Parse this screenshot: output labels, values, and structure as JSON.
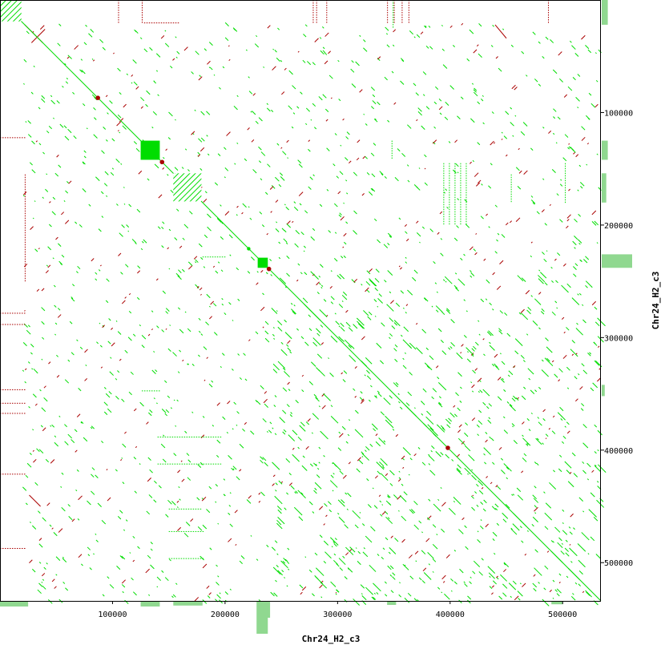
{
  "chart_data": {
    "type": "scatter",
    "title": "",
    "xlabel": "Chr24_H2_c3",
    "ylabel": "Chr24_H2_c3",
    "xlim": [
      0,
      534000
    ],
    "ylim": [
      0,
      534000
    ],
    "y_inverted": true,
    "grid": false,
    "x_ticks": [
      100000,
      200000,
      300000,
      400000,
      500000
    ],
    "y_ticks": [
      100000,
      200000,
      300000,
      400000,
      500000
    ],
    "colors": {
      "forward": "#00dd00",
      "reverse": "#aa0000",
      "histogram": "#90d890",
      "background": "#ffffff"
    },
    "diagonal": {
      "from": [
        0,
        0
      ],
      "to": [
        534000,
        534000
      ]
    },
    "blocks": [
      {
        "x": [
          0,
          19000
        ],
        "y": [
          0,
          19000
        ],
        "style": "hatched"
      },
      {
        "x": [
          125000,
          142000
        ],
        "y": [
          125000,
          142000
        ],
        "style": "solid"
      },
      {
        "x": [
          154000,
          179000
        ],
        "y": [
          154000,
          179000
        ],
        "style": "hatched"
      },
      {
        "x": [
          229000,
          238000
        ],
        "y": [
          229000,
          238000
        ],
        "style": "solid"
      }
    ],
    "points": [
      {
        "x": 221000,
        "y": 221000,
        "orientation": "forward"
      },
      {
        "x": 239000,
        "y": 239000,
        "orientation": "reverse"
      },
      {
        "x": 87000,
        "y": 87000,
        "orientation": "reverse"
      },
      {
        "x": 144000,
        "y": 144000,
        "orientation": "reverse"
      },
      {
        "x": 398000,
        "y": 398000,
        "orientation": "reverse"
      }
    ],
    "segments": [
      {
        "x": [
          22000,
          38000
        ],
        "y": [
          22000,
          38000
        ],
        "orientation": "reverse"
      },
      {
        "x": [
          28000,
          40000
        ],
        "y": [
          38000,
          26000
        ],
        "orientation": "reverse"
      },
      {
        "x": [
          270000,
          285000
        ],
        "y": [
          270000,
          285000
        ],
        "orientation": "forward"
      },
      {
        "x": [
          360000,
          370000
        ],
        "y": [
          360000,
          370000
        ],
        "orientation": "forward"
      },
      {
        "x": [
          456000,
          468000
        ],
        "y": [
          456000,
          468000
        ],
        "orientation": "forward"
      },
      {
        "x": [
          490000,
          500000
        ],
        "y": [
          490000,
          500000
        ],
        "orientation": "forward"
      },
      {
        "x": [
          505000,
          515000
        ],
        "y": [
          505000,
          515000
        ],
        "orientation": "forward"
      },
      {
        "x": [
          440000,
          450000
        ],
        "y": [
          22000,
          34000
        ],
        "orientation": "reverse"
      },
      {
        "x": [
          26000,
          36000
        ],
        "y": [
          440000,
          450000
        ],
        "orientation": "reverse"
      }
    ],
    "vertical_bands": [
      {
        "x": 105000,
        "y": [
          0,
          20000
        ],
        "orientation": "reverse"
      },
      {
        "x": 126000,
        "y": [
          0,
          20000
        ],
        "orientation": "reverse"
      },
      {
        "x": 278000,
        "y": [
          0,
          20000
        ],
        "orientation": "reverse"
      },
      {
        "x": 281000,
        "y": [
          0,
          20000
        ],
        "orientation": "reverse"
      },
      {
        "x": 290000,
        "y": [
          0,
          20000
        ],
        "orientation": "reverse"
      },
      {
        "x": 344000,
        "y": [
          0,
          20000
        ],
        "orientation": "reverse"
      },
      {
        "x": 350000,
        "y": [
          0,
          20000
        ],
        "orientation": "reverse"
      },
      {
        "x": 357000,
        "y": [
          0,
          20000
        ],
        "orientation": "reverse"
      },
      {
        "x": 363000,
        "y": [
          0,
          20000
        ],
        "orientation": "reverse"
      },
      {
        "x": 487000,
        "y": [
          0,
          20000
        ],
        "orientation": "reverse"
      },
      {
        "x": 22000,
        "y": [
          155000,
          250000
        ],
        "orientation": "reverse"
      },
      {
        "x": 349000,
        "y": [
          0,
          25000
        ],
        "orientation": "forward"
      },
      {
        "x": 394000,
        "y": [
          145000,
          200000
        ],
        "orientation": "forward"
      },
      {
        "x": 399000,
        "y": [
          145000,
          200000
        ],
        "orientation": "forward"
      },
      {
        "x": 404000,
        "y": [
          145000,
          200000
        ],
        "orientation": "forward"
      },
      {
        "x": 409000,
        "y": [
          145000,
          200000
        ],
        "orientation": "forward"
      },
      {
        "x": 414000,
        "y": [
          145000,
          200000
        ],
        "orientation": "forward"
      },
      {
        "x": 454000,
        "y": [
          155000,
          180000
        ],
        "orientation": "forward"
      },
      {
        "x": 502000,
        "y": [
          145000,
          180000
        ],
        "orientation": "forward"
      },
      {
        "x": 348000,
        "y": [
          125000,
          140000
        ],
        "orientation": "forward"
      }
    ],
    "horizontal_bands": [
      {
        "y": 122000,
        "x": [
          0,
          22000
        ],
        "orientation": "reverse"
      },
      {
        "y": 278000,
        "x": [
          0,
          22000
        ],
        "orientation": "reverse"
      },
      {
        "y": 288000,
        "x": [
          0,
          22000
        ],
        "orientation": "reverse"
      },
      {
        "y": 346000,
        "x": [
          0,
          22000
        ],
        "orientation": "reverse"
      },
      {
        "y": 358000,
        "x": [
          0,
          22000
        ],
        "orientation": "reverse"
      },
      {
        "y": 367000,
        "x": [
          0,
          22000
        ],
        "orientation": "reverse"
      },
      {
        "y": 421000,
        "x": [
          0,
          22000
        ],
        "orientation": "reverse"
      },
      {
        "y": 487000,
        "x": [
          0,
          22000
        ],
        "orientation": "reverse"
      },
      {
        "y": 347000,
        "x": [
          126000,
          142000
        ],
        "orientation": "forward"
      },
      {
        "y": 20000,
        "x": [
          128000,
          160000
        ],
        "orientation": "reverse"
      },
      {
        "y": 388000,
        "x": [
          140000,
          196000
        ],
        "orientation": "forward"
      },
      {
        "y": 412000,
        "x": [
          140000,
          196000
        ],
        "orientation": "forward"
      },
      {
        "y": 452000,
        "x": [
          150000,
          178000
        ],
        "orientation": "forward"
      },
      {
        "y": 472000,
        "x": [
          150000,
          180000
        ],
        "orientation": "forward"
      },
      {
        "y": 496000,
        "x": [
          150000,
          180000
        ],
        "orientation": "forward"
      },
      {
        "y": 228000,
        "x": [
          180000,
          200000
        ],
        "orientation": "forward"
      }
    ],
    "scatter_regions": [
      {
        "x": [
          20000,
          534000
        ],
        "y": [
          20000,
          534000
        ],
        "count": 1400,
        "orientation": "forward"
      },
      {
        "x": [
          20000,
          534000
        ],
        "y": [
          20000,
          534000
        ],
        "count": 380,
        "orientation": "reverse"
      },
      {
        "x": [
          240000,
          534000
        ],
        "y": [
          240000,
          534000
        ],
        "count": 420,
        "orientation": "forward"
      }
    ],
    "histogram_x": [
      {
        "x": [
          0,
          25000
        ],
        "height": 0.15
      },
      {
        "x": [
          125000,
          142000
        ],
        "height": 0.15
      },
      {
        "x": [
          154000,
          180000
        ],
        "height": 0.12
      },
      {
        "x": [
          228000,
          238000
        ],
        "height": 1.0
      },
      {
        "x": [
          236000,
          240000
        ],
        "height": 0.5
      },
      {
        "x": [
          344000,
          352000
        ],
        "height": 0.1
      },
      {
        "x": [
          490000,
          500000
        ],
        "height": 0.08
      }
    ],
    "histogram_y": [
      {
        "y": [
          0,
          22000
        ],
        "height": 0.2
      },
      {
        "y": [
          125000,
          142000
        ],
        "height": 0.2
      },
      {
        "y": [
          154000,
          180000
        ],
        "height": 0.15
      },
      {
        "y": [
          226000,
          238000
        ],
        "height": 1.0
      },
      {
        "y": [
          342000,
          352000
        ],
        "height": 0.1
      }
    ]
  }
}
